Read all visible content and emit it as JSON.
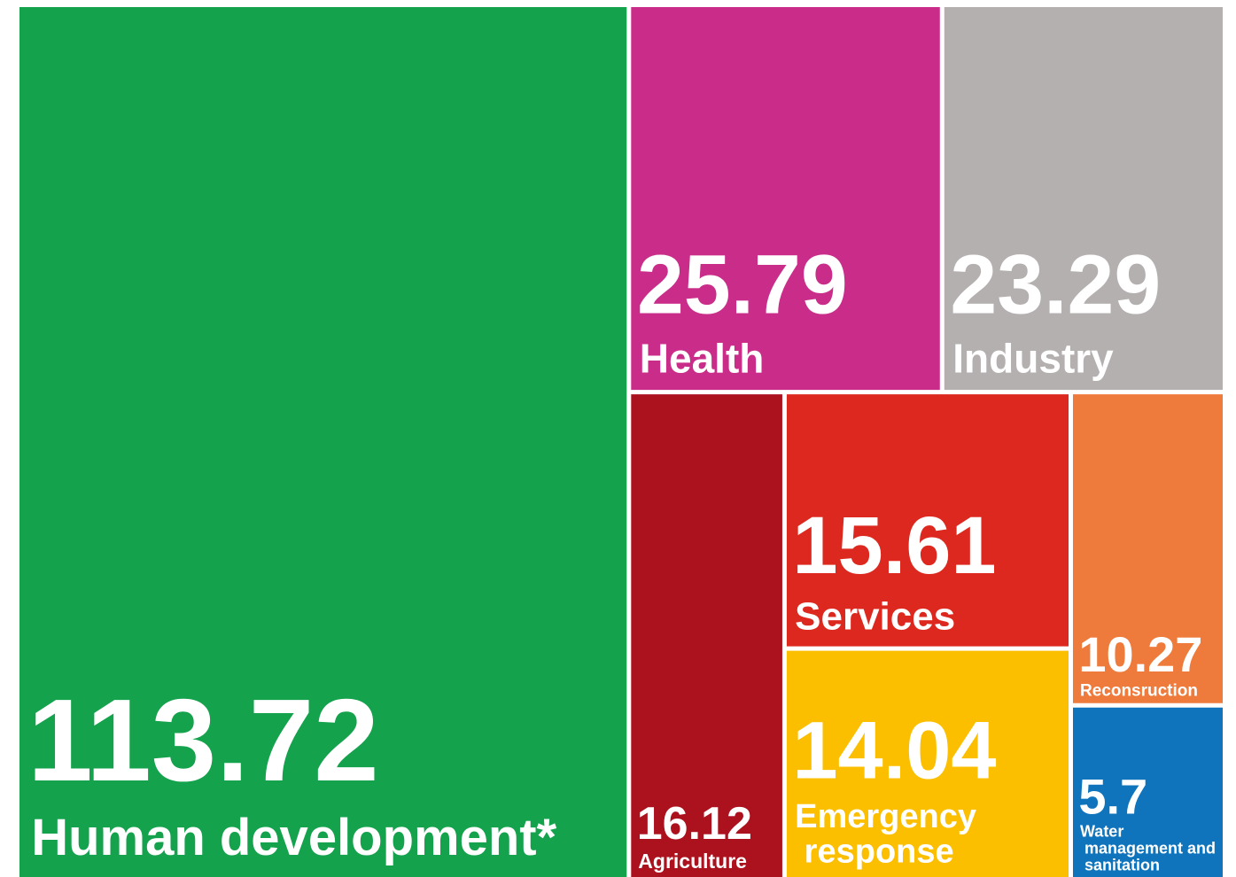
{
  "chart_data": {
    "type": "treemap",
    "categories": [
      "Human development*",
      "Health",
      "Industry",
      "Agriculture",
      "Services",
      "Emergency response",
      "Reconsruction",
      "Water management and sanitation"
    ],
    "values": [
      113.72,
      25.79,
      23.29,
      16.12,
      15.61,
      14.04,
      10.27,
      5.7
    ],
    "colors": [
      "#14a24c",
      "#c92d89",
      "#b5b0b0",
      "#ab121e",
      "#dc281e",
      "#fbbf00",
      "#ee7a3b",
      "#0f74bb"
    ]
  }
}
